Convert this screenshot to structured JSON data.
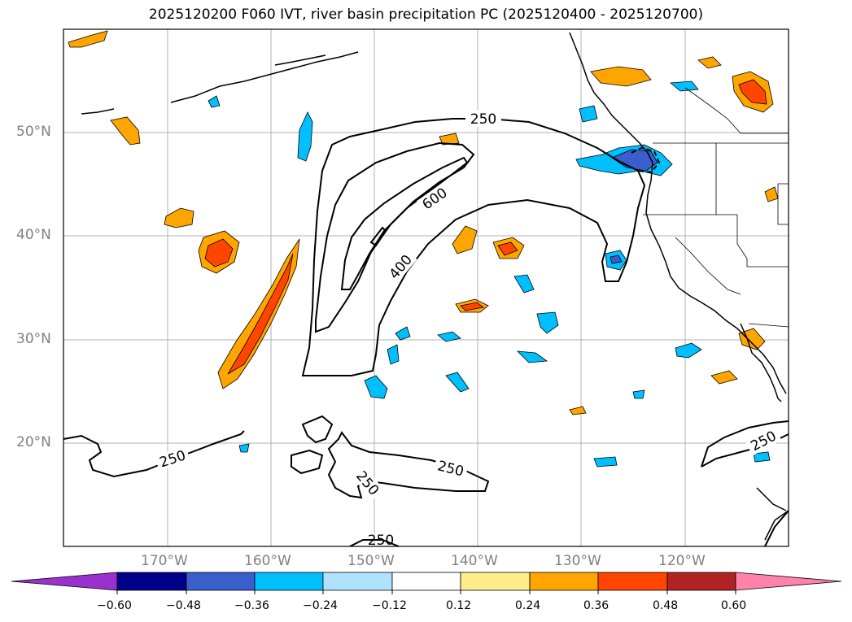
{
  "title": "2025120200 F060 IVT, river basin precipitation PC (2025120400 - 2025120700)",
  "lat_labels": [
    "50°N",
    "40°N",
    "30°N",
    "20°N"
  ],
  "lon_labels": [
    "170°W",
    "160°W",
    "150°W",
    "140°W",
    "130°W",
    "120°W"
  ],
  "contour_labels": [
    "250",
    "600",
    "400",
    "250",
    "250",
    "250",
    "250"
  ],
  "colorbar": {
    "ticks": [
      "−0.60",
      "−0.48",
      "−0.36",
      "−0.24",
      "−0.12",
      "0.12",
      "0.24",
      "0.36",
      "0.48",
      "0.60"
    ],
    "colors": [
      "#9932CC",
      "#00008B",
      "#3A5FCD",
      "#00BFFF",
      "#B0E2FF",
      "#FFFFFF",
      "#FFEC8B",
      "#FFA500",
      "#FF4500",
      "#B22222",
      "#FF82AB"
    ]
  },
  "colors": {
    "orange": "#FFA500",
    "red": "#FF4500",
    "cyan": "#00BFFF",
    "blue": "#3A5FCD",
    "grid": "#b0b0b0"
  }
}
